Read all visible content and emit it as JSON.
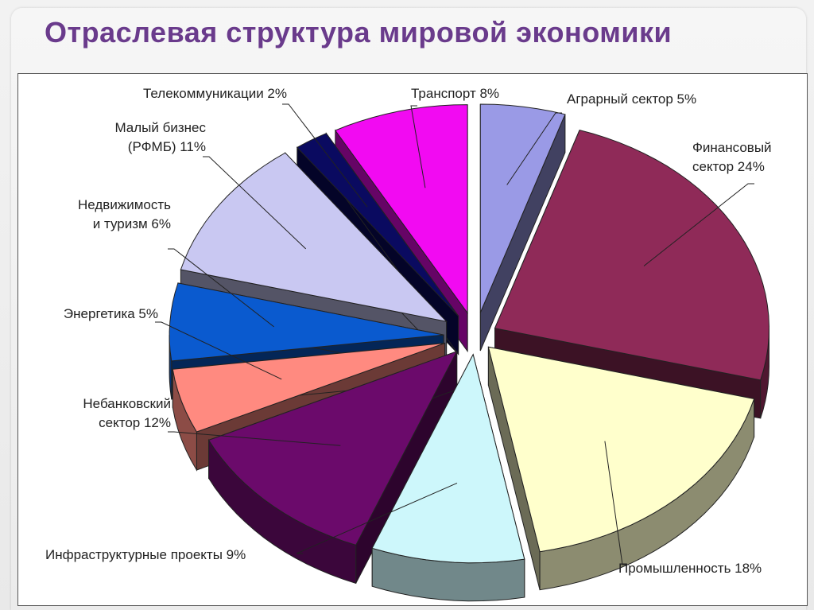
{
  "slide": {
    "title": "Отраслевая структура мировой экономики"
  },
  "chart_data": {
    "type": "pie",
    "title": "",
    "categories": [
      "Аграрный сектор",
      "Финансовый сектор",
      "Промышленность",
      "Инфраструктурные проекты",
      "Небанковский сектор",
      "Энергетика",
      "Недвижимость и туризм",
      "Малый бизнес (РФМБ)",
      "Телекоммуникации",
      "Транспорт"
    ],
    "values": [
      5,
      24,
      18,
      9,
      12,
      5,
      6,
      11,
      2,
      8
    ],
    "unit": "%",
    "labels": [
      [
        "Аграрный сектор 5%"
      ],
      [
        "Финансовый",
        "сектор 24%"
      ],
      [
        "Промышленность 18%"
      ],
      [
        "Инфраструктурные проекты 9%"
      ],
      [
        "Небанковский",
        "сектор 12%"
      ],
      [
        "Энергетика 5%"
      ],
      [
        "Недвижимость",
        "и туризм 6%"
      ],
      [
        "Малый бизнес",
        "(РФМБ) 11%"
      ],
      [
        "Телекоммуникации 2%"
      ],
      [
        "Транспорт 8%"
      ]
    ],
    "colors": [
      "#9a9ae6",
      "#8f2a58",
      "#ffffcc",
      "#cdf7fb",
      "#6b0a6b",
      "#ff8a80",
      "#0a5acf",
      "#c9c8f2",
      "#0a0a60",
      "#f20af2"
    ],
    "exploded": true,
    "style": "3d"
  }
}
